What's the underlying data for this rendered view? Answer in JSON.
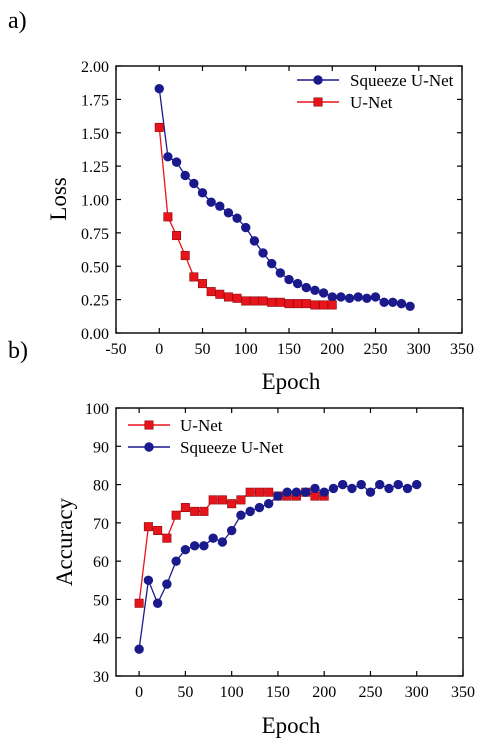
{
  "chart_data": [
    {
      "panel_label": "a)",
      "type": "line",
      "xlabel": "Epoch",
      "ylabel": "Loss",
      "xlim": [
        -50,
        350
      ],
      "ylim": [
        0,
        2
      ],
      "x_ticks": [
        "-50",
        "0",
        "50",
        "100",
        "150",
        "200",
        "250",
        "300",
        "350"
      ],
      "y_ticks": [
        "0.00",
        "0.25",
        "0.50",
        "0.75",
        "1.00",
        "1.25",
        "1.50",
        "1.75",
        "2.00"
      ],
      "legend_position": "top-right",
      "series": [
        {
          "name": "Squeeze U-Net",
          "color": "#1a1a8c",
          "marker": "circle",
          "x": [
            0,
            10,
            20,
            30,
            40,
            50,
            60,
            70,
            80,
            90,
            100,
            110,
            120,
            130,
            140,
            150,
            160,
            170,
            180,
            190,
            200,
            210,
            220,
            230,
            240,
            250,
            260,
            270,
            280,
            290
          ],
          "y": [
            1.83,
            1.32,
            1.28,
            1.18,
            1.12,
            1.05,
            0.98,
            0.95,
            0.9,
            0.86,
            0.79,
            0.69,
            0.6,
            0.52,
            0.45,
            0.4,
            0.37,
            0.34,
            0.32,
            0.3,
            0.27,
            0.27,
            0.26,
            0.27,
            0.26,
            0.27,
            0.23,
            0.23,
            0.22,
            0.2
          ]
        },
        {
          "name": "U-Net",
          "color": "#e8141b",
          "marker": "square",
          "x": [
            0,
            10,
            20,
            30,
            40,
            50,
            60,
            70,
            80,
            90,
            100,
            110,
            120,
            130,
            140,
            150,
            160,
            170,
            180,
            190,
            200
          ],
          "y": [
            1.54,
            0.87,
            0.73,
            0.58,
            0.42,
            0.37,
            0.31,
            0.29,
            0.27,
            0.26,
            0.24,
            0.24,
            0.24,
            0.23,
            0.23,
            0.22,
            0.22,
            0.22,
            0.21,
            0.21,
            0.21
          ]
        }
      ]
    },
    {
      "panel_label": "b)",
      "type": "line",
      "xlabel": "Epoch",
      "ylabel": "Accuracy",
      "xlim": [
        -25,
        350
      ],
      "ylim": [
        30,
        100
      ],
      "x_ticks": [
        "0",
        "50",
        "100",
        "150",
        "200",
        "250",
        "300",
        "350"
      ],
      "y_ticks": [
        "30",
        "40",
        "50",
        "60",
        "70",
        "80",
        "90",
        "100"
      ],
      "legend_position": "top-left",
      "series": [
        {
          "name": "U-Net",
          "color": "#e8141b",
          "marker": "square",
          "x": [
            0,
            10,
            20,
            30,
            40,
            50,
            60,
            70,
            80,
            90,
            100,
            110,
            120,
            130,
            140,
            150,
            160,
            170,
            180,
            190,
            200
          ],
          "y": [
            49,
            69,
            68,
            66,
            72,
            74,
            73,
            73,
            76,
            76,
            75,
            76,
            78,
            78,
            78,
            77,
            77,
            77,
            78,
            77,
            77
          ]
        },
        {
          "name": "Squeeze U-Net",
          "color": "#1a1a8c",
          "marker": "circle",
          "x": [
            0,
            10,
            20,
            30,
            40,
            50,
            60,
            70,
            80,
            90,
            100,
            110,
            120,
            130,
            140,
            150,
            160,
            170,
            180,
            190,
            200,
            210,
            220,
            230,
            240,
            250,
            260,
            270,
            280,
            290,
            300
          ],
          "y": [
            37,
            55,
            49,
            54,
            60,
            63,
            64,
            64,
            66,
            65,
            68,
            72,
            73,
            74,
            75,
            77,
            78,
            78,
            78,
            79,
            78,
            79,
            80,
            79,
            80,
            78,
            80,
            79,
            80,
            79,
            80
          ]
        }
      ]
    }
  ]
}
